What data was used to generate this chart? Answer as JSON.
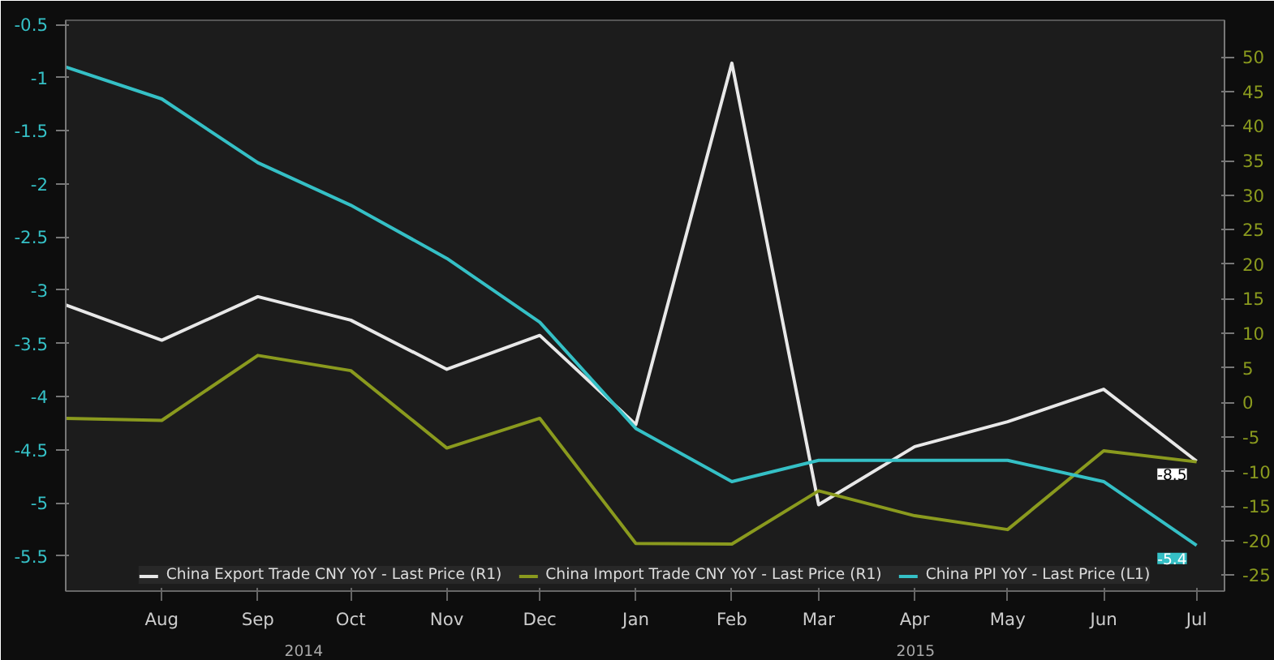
{
  "chart_data": {
    "type": "line",
    "x": [
      "2014-07",
      "2014-08",
      "2014-09",
      "2014-10",
      "2014-11",
      "2014-12",
      "2015-01",
      "2015-02",
      "2015-03",
      "2015-04",
      "2015-05",
      "2015-06",
      "2015-07"
    ],
    "series": [
      {
        "name": "China Export Trade CNY YoY - Last Price (R1)",
        "color": "#e8e8e8",
        "axis": "y2",
        "values": [
          14.1,
          9.0,
          15.3,
          11.9,
          4.8,
          9.7,
          -3.2,
          49.1,
          -14.8,
          -6.4,
          -2.8,
          1.9,
          -8.5
        ],
        "value_labels": [
          null,
          null,
          null,
          null,
          null,
          null,
          null,
          null,
          null,
          null,
          null,
          null,
          "-8.5"
        ]
      },
      {
        "name": "China Import Trade CNY YoY - Last Price (R1)",
        "color": "#8a9a1e",
        "axis": "y2",
        "values": [
          -2.3,
          -2.6,
          6.8,
          4.6,
          -6.6,
          -2.3,
          -20.4,
          -20.5,
          -12.8,
          -16.4,
          -18.4,
          -7.0,
          -8.6
        ]
      },
      {
        "name": "China PPI YoY - Last Price (L1)",
        "color": "#35c0c6",
        "values": [
          -0.9,
          -1.2,
          -1.8,
          -2.2,
          -2.7,
          -3.3,
          -4.3,
          -4.8,
          -4.6,
          -4.6,
          -4.6,
          -4.8,
          -5.4
        ],
        "value_labels": [
          null,
          null,
          null,
          null,
          null,
          null,
          null,
          null,
          null,
          null,
          null,
          null,
          "-5.4"
        ]
      }
    ],
    "xlim": [
      "2014-07",
      "2015-07-10"
    ],
    "xticks": [
      {
        "value": "2014-08",
        "label": "Aug"
      },
      {
        "value": "2014-09",
        "label": "Sep"
      },
      {
        "value": "2014-10",
        "label": "Oct"
      },
      {
        "value": "2014-11",
        "label": "Nov"
      },
      {
        "value": "2014-12",
        "label": "Dec"
      },
      {
        "value": "2015-01",
        "label": "Jan"
      },
      {
        "value": "2015-02",
        "label": "Feb"
      },
      {
        "value": "2015-03",
        "label": "Mar"
      },
      {
        "value": "2015-04",
        "label": "Apr"
      },
      {
        "value": "2015-05",
        "label": "May"
      },
      {
        "value": "2015-06",
        "label": "Jun"
      },
      {
        "value": "2015-07",
        "label": "Jul"
      }
    ],
    "ylim": [
      -5.83,
      -0.46
    ],
    "yticks": [
      -0.5,
      -1.0,
      -1.5,
      -2.0,
      -2.5,
      -3.0,
      -3.5,
      -4.0,
      -4.5,
      -5.0,
      -5.5
    ],
    "y2lim": [
      -27.3,
      55.3
    ],
    "y2ticks": [
      50,
      45,
      40,
      35,
      30,
      25,
      20,
      15,
      10,
      5,
      0,
      -5,
      -10,
      -15,
      -20,
      -25
    ],
    "annotations": [
      "2014",
      "2015"
    ],
    "legend": "bottom",
    "grid": false,
    "marker": "none",
    "line_style": "solid"
  }
}
